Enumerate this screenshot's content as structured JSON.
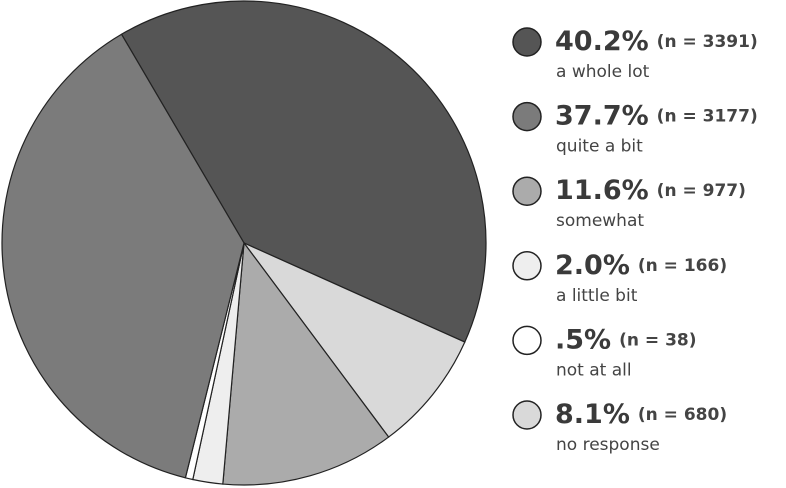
{
  "chart_data": {
    "type": "pie",
    "categories": [
      "a whole lot",
      "quite a bit",
      "somewhat",
      "a little bit",
      "not at all",
      "no response"
    ],
    "values": [
      40.2,
      37.7,
      11.6,
      2.0,
      0.5,
      8.1
    ],
    "value_labels": [
      "40.2%",
      "37.7%",
      "11.6%",
      "2.0%",
      ".5%",
      "8.1%"
    ],
    "count_labels": [
      "(n = 3391)",
      "(n = 3177)",
      "(n = 977)",
      "(n = 166)",
      "(n = 38)",
      "(n = 680)"
    ],
    "colors": [
      "#555555",
      "#7b7b7b",
      "#ababab",
      "#eeeeee",
      "#ffffff",
      "#d9d9d9"
    ]
  }
}
